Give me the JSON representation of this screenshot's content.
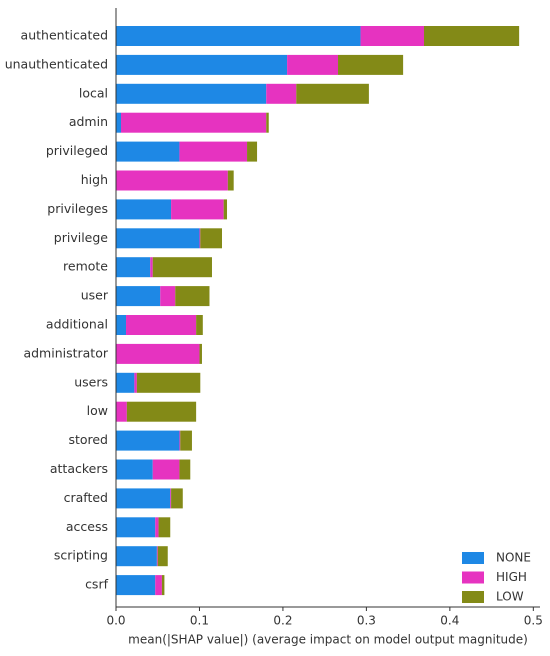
{
  "chart_data": {
    "type": "stacked-barh",
    "x_label": "mean(|SHAP value|) (average impact on model output magnitude)",
    "categories": [
      "authenticated",
      "unauthenticated",
      "local",
      "admin",
      "privileged",
      "high",
      "privileges",
      "privilege",
      "remote",
      "user",
      "additional",
      "administrator",
      "users",
      "low",
      "stored",
      "attackers",
      "crafted",
      "access",
      "scripting",
      "csrf"
    ],
    "series": [
      {
        "name": "NONE",
        "color": "#1e88e5",
        "values": [
          0.293,
          0.205,
          0.18,
          0.006,
          0.076,
          0,
          0.066,
          0.1,
          0.041,
          0.053,
          0.012,
          0,
          0.022,
          0,
          0.076,
          0.044,
          0.065,
          0.047,
          0.049,
          0.047
        ]
      },
      {
        "name": "HIGH",
        "color": "#e633c0",
        "values": [
          0.076,
          0.061,
          0.036,
          0.174,
          0.081,
          0.134,
          0.063,
          0.001,
          0.003,
          0.018,
          0.084,
          0.1,
          0.003,
          0.013,
          0.001,
          0.032,
          0.001,
          0.004,
          0.001,
          0.008
        ]
      },
      {
        "name": "LOW",
        "color": "#838a17",
        "values": [
          0.114,
          0.078,
          0.087,
          0.003,
          0.012,
          0.007,
          0.004,
          0.026,
          0.071,
          0.041,
          0.008,
          0.003,
          0.076,
          0.083,
          0.014,
          0.013,
          0.014,
          0.014,
          0.012,
          0.003
        ]
      }
    ],
    "xlim": [
      0,
      0.508
    ],
    "xticks": [
      {
        "value": 0,
        "label": "0.0"
      },
      0.1,
      0.2,
      0.3,
      0.4,
      0.5
    ],
    "legend": "lower right"
  }
}
